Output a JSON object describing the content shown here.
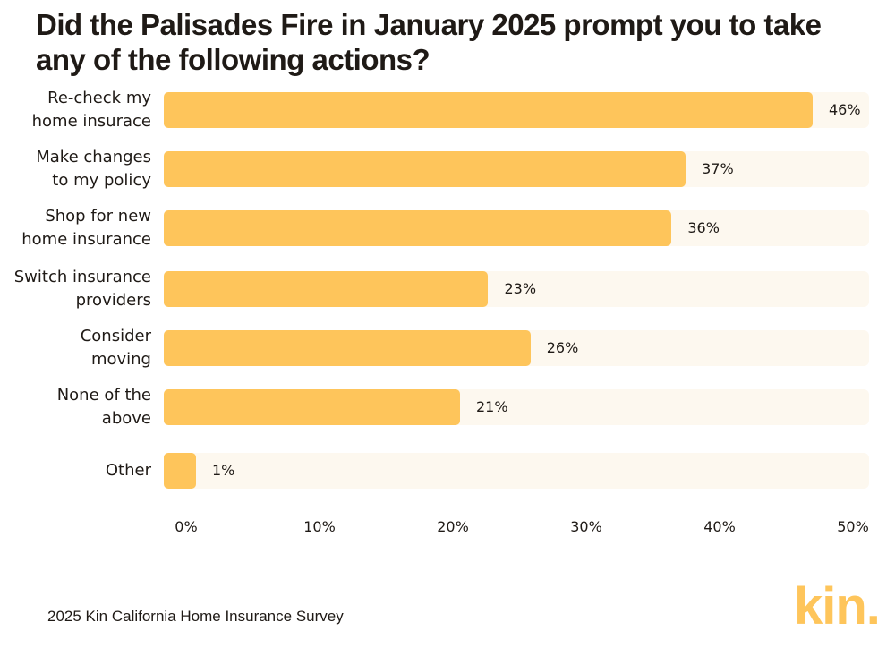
{
  "title": "Did the Palisades Fire in January 2025 prompt you to take any of the following actions?",
  "colors": {
    "bar": "#fec55b",
    "track": "#fdf8ef",
    "text": "#1f1a16"
  },
  "chart_data": {
    "type": "bar",
    "orientation": "horizontal",
    "categories": [
      [
        "Re-check my",
        "home insurace"
      ],
      [
        "Make changes",
        "to my policy"
      ],
      [
        "Shop for new",
        "home insurance"
      ],
      [
        "Switch insurance",
        "providers"
      ],
      [
        "Consider",
        "moving"
      ],
      [
        "None of the",
        "above"
      ],
      [
        "Other"
      ]
    ],
    "values": [
      46,
      37,
      36,
      23,
      26,
      21,
      1
    ],
    "value_labels": [
      "46%",
      "37%",
      "36%",
      "23%",
      "26%",
      "21%",
      "1%"
    ],
    "xlim": [
      0,
      50
    ],
    "x_ticks": [
      "0%",
      "10%",
      "20%",
      "30%",
      "40%",
      "50%"
    ],
    "grid": false,
    "legend": "none"
  },
  "source": "2025 Kin California Home Insurance Survey",
  "logo": {
    "text": "kin.",
    "color": "#fec55b"
  }
}
